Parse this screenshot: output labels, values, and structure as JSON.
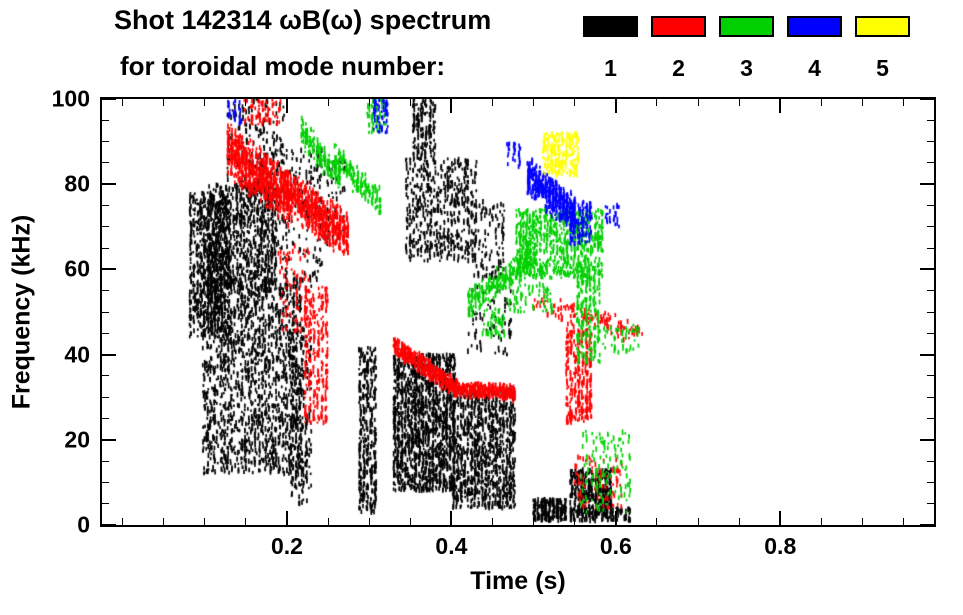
{
  "title": {
    "line1": "Shot 142314 ωB(ω) spectrum",
    "line2": "for toroidal mode number:"
  },
  "legend": {
    "items": [
      {
        "label": "1",
        "color": "#000000"
      },
      {
        "label": "2",
        "color": "#ff0000"
      },
      {
        "label": "3",
        "color": "#00d000"
      },
      {
        "label": "4",
        "color": "#0000ff"
      },
      {
        "label": "5",
        "color": "#ffff00"
      }
    ]
  },
  "chart_data": {
    "type": "scatter",
    "title": "Shot 142314 ωB(ω) spectrum for toroidal mode number",
    "xlabel": "Time (s)",
    "ylabel": "Frequency (kHz)",
    "xlim": [
      -0.025,
      0.987
    ],
    "ylim": [
      0,
      100
    ],
    "xticks": [
      0.2,
      0.4,
      0.6,
      0.8
    ],
    "xtick_labels": [
      "0.2",
      "0.4",
      "0.6",
      "0.8"
    ],
    "xminor": 0.05,
    "yticks": [
      0,
      20,
      40,
      60,
      80,
      100
    ],
    "yminor": 5,
    "grid": false,
    "legend_position": "top-right",
    "series": [
      {
        "name": "n=1",
        "color": "#000000",
        "clusters": [
          {
            "t": [
              0.082,
              0.128
            ],
            "f": [
              44,
              78
            ],
            "n": 750
          },
          {
            "t": [
              0.098,
              0.215
            ],
            "f": [
              12,
              58
            ],
            "n": 1600
          },
          {
            "t": [
              0.105,
              0.185
            ],
            "f": [
              55,
              80
            ],
            "n": 800
          },
          {
            "t": [
              0.128,
              0.195
            ],
            "f": [
              78,
              100
            ],
            "n": 200
          },
          {
            "t": [
              0.16,
              0.24
            ],
            "f": [
              55,
              88
            ],
            "n": 260
          },
          {
            "t": [
              0.205,
              0.227
            ],
            "f": [
              5,
              46
            ],
            "n": 260
          },
          {
            "t": [
              0.24,
              0.268
            ],
            "f": [
              66,
              86
            ],
            "n": 70
          },
          {
            "t": [
              0.288,
              0.306
            ],
            "f": [
              3,
              42
            ],
            "n": 380
          },
          {
            "t": [
              0.33,
              0.402
            ],
            "f": [
              8,
              40
            ],
            "n": 1500
          },
          {
            "t": [
              0.402,
              0.475
            ],
            "f": [
              4,
              32
            ],
            "n": 1000
          },
          {
            "t": [
              0.345,
              0.428
            ],
            "f": [
              62,
              86
            ],
            "n": 550
          },
          {
            "t": [
              0.353,
              0.378
            ],
            "f": [
              86,
              100
            ],
            "n": 170
          },
          {
            "t": [
              0.428,
              0.462
            ],
            "f": [
              58,
              76
            ],
            "n": 110
          },
          {
            "t": [
              0.42,
              0.47
            ],
            "f": [
              40,
              56
            ],
            "n": 80
          },
          {
            "t": [
              0.5,
              0.537
            ],
            "f": [
              1,
              6
            ],
            "n": 240
          },
          {
            "t": [
              0.545,
              0.592
            ],
            "f": [
              1,
              13
            ],
            "n": 480
          },
          {
            "t": [
              0.596,
              0.615
            ],
            "f": [
              1,
              4
            ],
            "n": 50
          }
        ]
      },
      {
        "name": "n=2",
        "color": "#ff0000",
        "clusters": [
          {
            "t": [
              0.128,
              0.2
            ],
            "band": [
              88,
              77,
              7
            ],
            "n": 750
          },
          {
            "t": [
              0.2,
              0.272
            ],
            "band": [
              78,
              68,
              6
            ],
            "n": 650
          },
          {
            "t": [
              0.148,
              0.19
            ],
            "f": [
              94,
              100
            ],
            "n": 70
          },
          {
            "t": [
              0.222,
              0.247
            ],
            "f": [
              24,
              56
            ],
            "n": 260
          },
          {
            "t": [
              0.19,
              0.225
            ],
            "f": [
              45,
              66
            ],
            "n": 80
          },
          {
            "t": [
              0.33,
              0.405
            ],
            "band": [
              42,
              32,
              2.5
            ],
            "n": 450
          },
          {
            "t": [
              0.405,
              0.475
            ],
            "band": [
              32,
              31,
              2
            ],
            "n": 380
          },
          {
            "t": [
              0.54,
              0.568
            ],
            "f": [
              24,
              46
            ],
            "n": 320
          },
          {
            "t": [
              0.5,
              0.63
            ],
            "band": [
              52,
              45,
              3
            ],
            "n": 130
          },
          {
            "t": [
              0.55,
              0.605
            ],
            "f": [
              4,
              16
            ],
            "n": 90
          }
        ]
      },
      {
        "name": "n=3",
        "color": "#00d000",
        "clusters": [
          {
            "t": [
              0.218,
              0.262
            ],
            "band": [
              92,
              82,
              4
            ],
            "n": 170
          },
          {
            "t": [
              0.258,
              0.312
            ],
            "band": [
              86,
              76,
              4
            ],
            "n": 170
          },
          {
            "t": [
              0.298,
              0.318
            ],
            "f": [
              92,
              100
            ],
            "n": 60
          },
          {
            "t": [
              0.42,
              0.5
            ],
            "band": [
              52,
              63,
              4
            ],
            "n": 260
          },
          {
            "t": [
              0.478,
              0.582
            ],
            "f": [
              58,
              74
            ],
            "n": 750
          },
          {
            "t": [
              0.553,
              0.578
            ],
            "f": [
              38,
              60
            ],
            "n": 220
          },
          {
            "t": [
              0.558,
              0.615
            ],
            "f": [
              3,
              22
            ],
            "n": 130
          },
          {
            "t": [
              0.438,
              0.462
            ],
            "f": [
              44,
              51
            ],
            "n": 50
          },
          {
            "t": [
              0.585,
              0.625
            ],
            "f": [
              40,
              47
            ],
            "n": 45
          },
          {
            "t": [
              0.466,
              0.52
            ],
            "f": [
              50,
              57
            ],
            "n": 70
          }
        ]
      },
      {
        "name": "n=4",
        "color": "#0000ff",
        "clusters": [
          {
            "t": [
              0.493,
              0.548
            ],
            "band": [
              82,
              73,
              5
            ],
            "n": 480
          },
          {
            "t": [
              0.545,
              0.568
            ],
            "f": [
              66,
              76
            ],
            "n": 130
          },
          {
            "t": [
              0.306,
              0.32
            ],
            "f": [
              92,
              100
            ],
            "n": 60
          },
          {
            "t": [
              0.128,
              0.142
            ],
            "f": [
              94,
              100
            ],
            "n": 30
          },
          {
            "t": [
              0.468,
              0.482
            ],
            "f": [
              84,
              90
            ],
            "n": 30
          },
          {
            "t": [
              0.588,
              0.602
            ],
            "f": [
              70,
              75
            ],
            "n": 25
          }
        ]
      },
      {
        "name": "n=5",
        "color": "#ffff00",
        "clusters": [
          {
            "t": [
              0.512,
              0.552
            ],
            "f": [
              82,
              92
            ],
            "n": 240
          }
        ]
      }
    ]
  }
}
